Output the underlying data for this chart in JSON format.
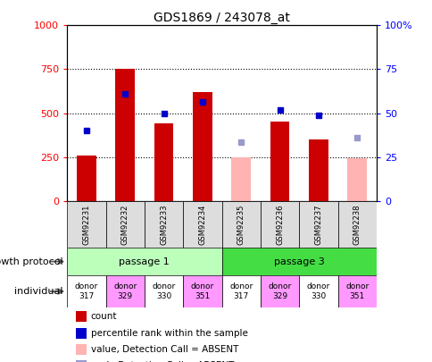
{
  "title": "GDS1869 / 243078_at",
  "samples": [
    "GSM92231",
    "GSM92232",
    "GSM92233",
    "GSM92234",
    "GSM92235",
    "GSM92236",
    "GSM92237",
    "GSM92238"
  ],
  "count_values": [
    260,
    752,
    440,
    620,
    null,
    450,
    350,
    null
  ],
  "count_absent_values": [
    null,
    null,
    null,
    null,
    250,
    null,
    null,
    245
  ],
  "percentile_values": [
    400,
    610,
    500,
    565,
    null,
    520,
    490,
    null
  ],
  "percentile_absent_values": [
    null,
    null,
    null,
    null,
    335,
    null,
    null,
    360
  ],
  "ylim_left": [
    0,
    1000
  ],
  "yticks_left": [
    0,
    250,
    500,
    750,
    1000
  ],
  "bar_color_present": "#cc0000",
  "bar_color_absent": "#ffb3b3",
  "dot_color_present": "#0000cc",
  "dot_color_absent": "#9999cc",
  "passage_labels": [
    "passage 1",
    "passage 3"
  ],
  "passage_color_1": "#bbffbb",
  "passage_color_2": "#44dd44",
  "individual_labels": [
    "donor\n317",
    "donor\n329",
    "donor\n330",
    "donor\n351",
    "donor\n317",
    "donor\n329",
    "donor\n330",
    "donor\n351"
  ],
  "individual_colors": [
    "#ffffff",
    "#ff99ff",
    "#ffffff",
    "#ff99ff",
    "#ffffff",
    "#ff99ff",
    "#ffffff",
    "#ff99ff"
  ],
  "legend_items": [
    {
      "label": "count",
      "color": "#cc0000"
    },
    {
      "label": "percentile rank within the sample",
      "color": "#0000cc"
    },
    {
      "label": "value, Detection Call = ABSENT",
      "color": "#ffb3b3"
    },
    {
      "label": "rank, Detection Call = ABSENT",
      "color": "#9999cc"
    }
  ],
  "bar_width": 0.5
}
